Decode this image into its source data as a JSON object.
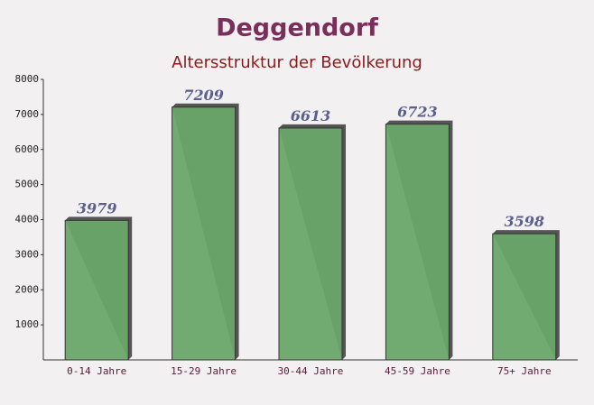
{
  "chart_data": {
    "type": "bar",
    "title": "Deggendorf",
    "subtitle": "Altersstruktur der Bevölkerung",
    "categories": [
      "0-14 Jahre",
      "15-29 Jahre",
      "30-44 Jahre",
      "45-59 Jahre",
      "75+ Jahre"
    ],
    "values": [
      3979,
      7209,
      6613,
      6723,
      3598
    ],
    "color": "#6aa66a",
    "ylim": [
      0,
      8000
    ],
    "yticks": [
      1000,
      2000,
      3000,
      4000,
      5000,
      6000,
      7000,
      8000
    ],
    "grid": false
  }
}
